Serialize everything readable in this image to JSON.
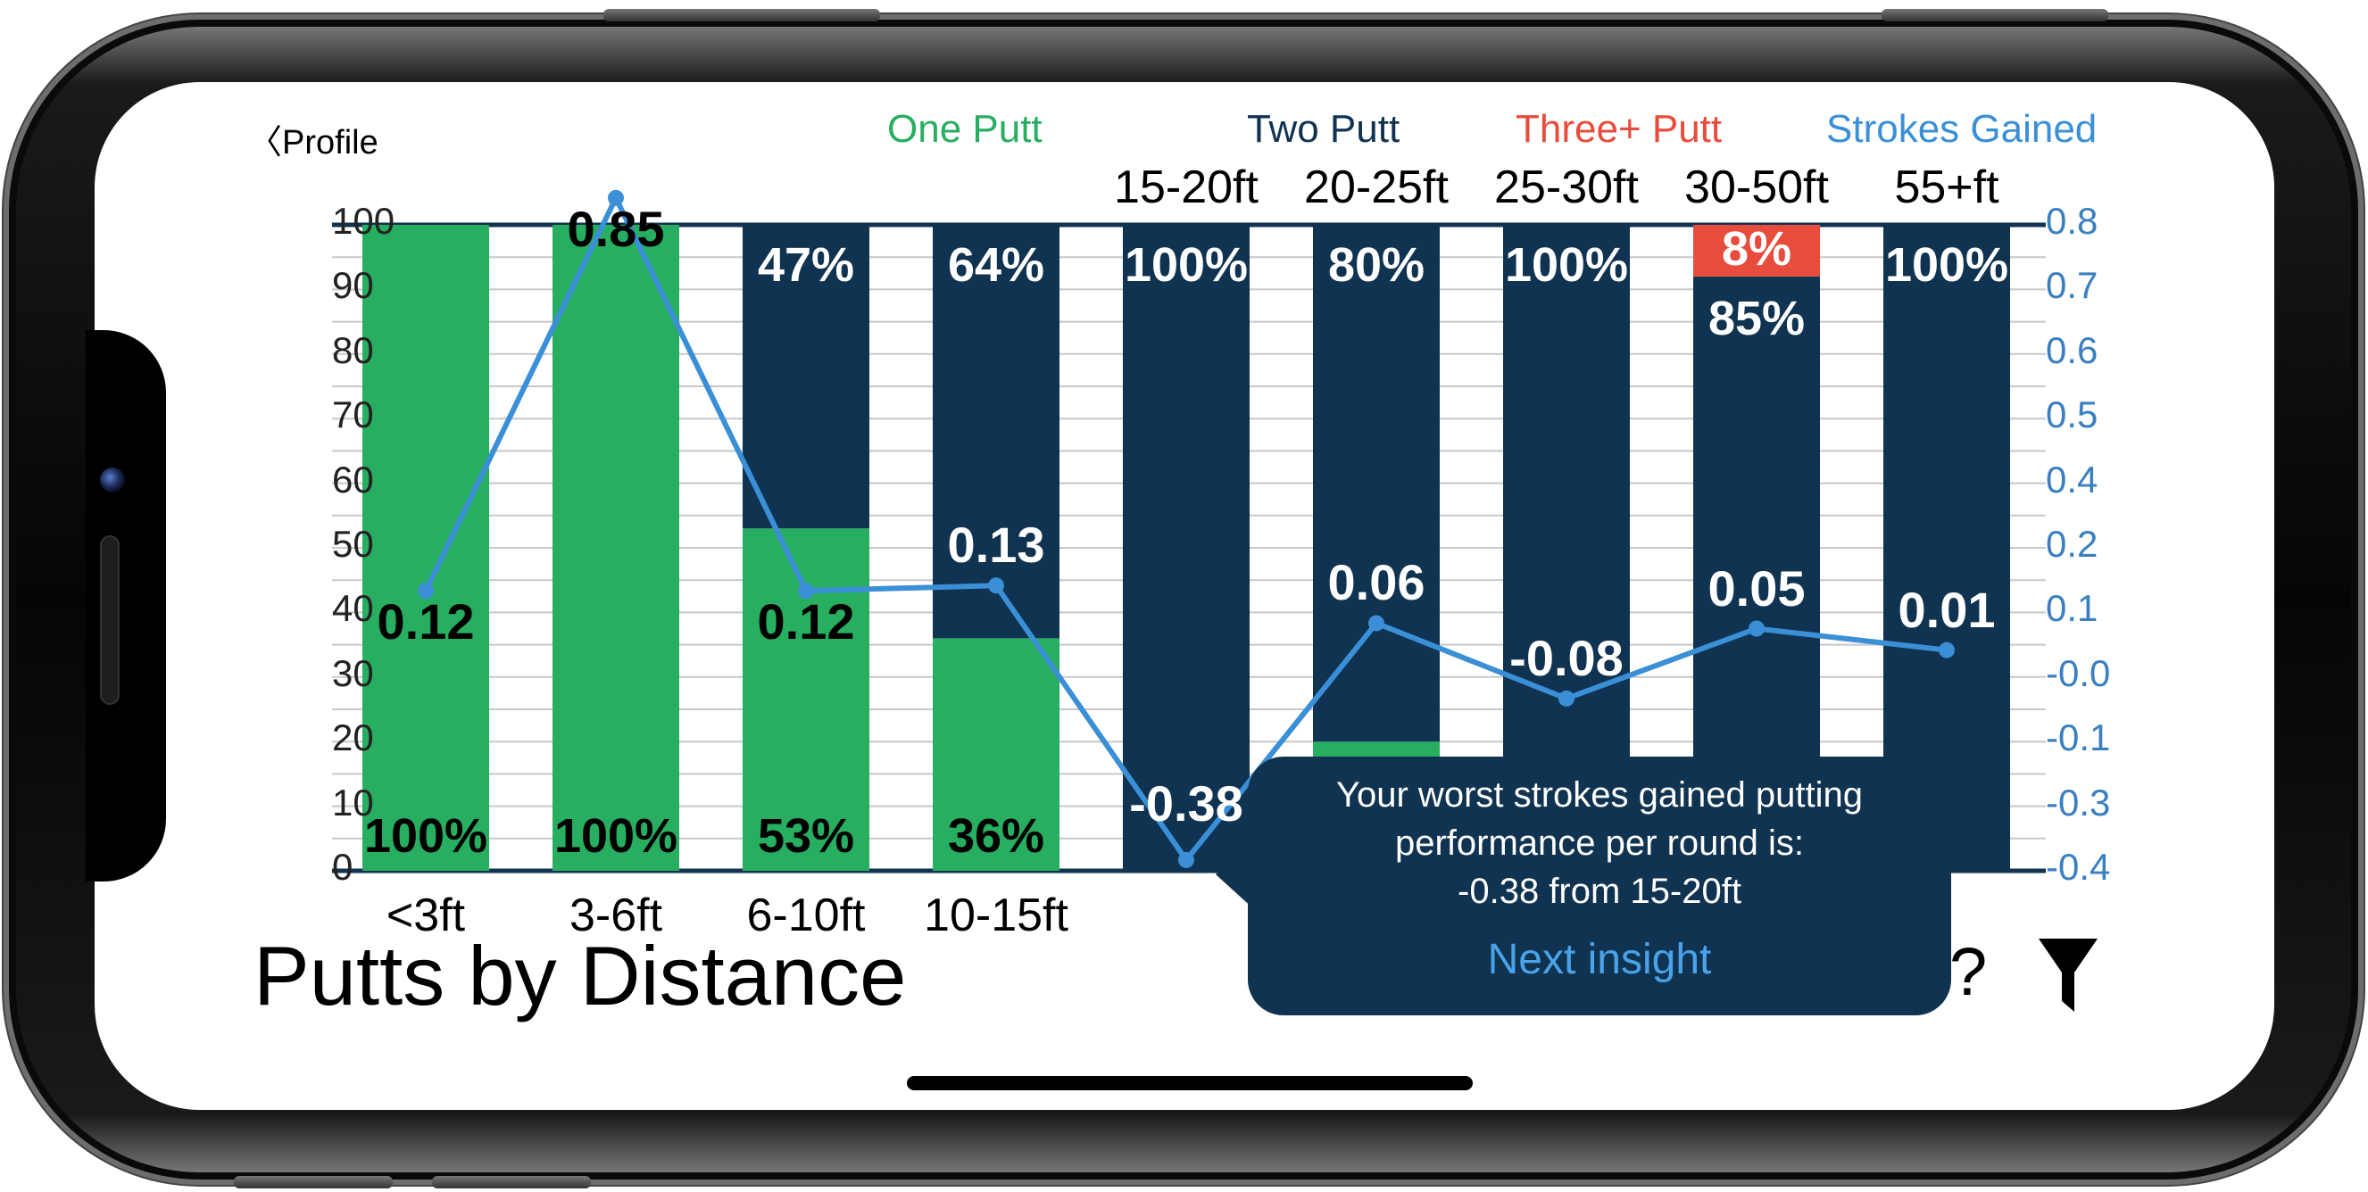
{
  "nav": {
    "back_label": "Profile"
  },
  "page_title": "Putts by Distance",
  "legend": [
    {
      "label": "One Putt",
      "color": "#27ae60"
    },
    {
      "label": "Two Putt",
      "color": "#0f3350"
    },
    {
      "label": "Three+ Putt",
      "color": "#e74c3c"
    },
    {
      "label": "Strokes Gained",
      "color": "#3a8fd6"
    }
  ],
  "tooltip": {
    "line1": "Your worst strokes gained putting",
    "line2": "performance per round is:",
    "line3": "-0.38 from 15-20ft",
    "link": "Next insight"
  },
  "icons": {
    "help": "?",
    "filter": "filter-icon"
  },
  "chart_data": {
    "type": "bar",
    "stacked": true,
    "categories": [
      "<3ft",
      "3-6ft",
      "6-10ft",
      "10-15ft",
      "15-20ft",
      "20-25ft",
      "25-30ft",
      "30-50ft",
      "55+ft"
    ],
    "y_left": {
      "ylim": [
        0,
        100
      ],
      "ticks": [
        "0",
        "10",
        "20",
        "30",
        "40",
        "50",
        "60",
        "70",
        "80",
        "90",
        "100"
      ]
    },
    "y_right": {
      "ylim": [
        -0.4,
        0.8
      ],
      "ticks": [
        "-0.4",
        "-0.3",
        "-0.1",
        "-0.0",
        "0.1",
        "0.2",
        "0.4",
        "0.5",
        "0.6",
        "0.7",
        "0.8"
      ]
    },
    "series": [
      {
        "name": "One Putt",
        "values": [
          100,
          100,
          53,
          36,
          0,
          20,
          0,
          7,
          0
        ],
        "labels": [
          "100%",
          "100%",
          "53%",
          "36%",
          "",
          "",
          "",
          "",
          ""
        ]
      },
      {
        "name": "Two Putt",
        "values": [
          0,
          0,
          47,
          64,
          100,
          80,
          100,
          85,
          100
        ],
        "labels": [
          "",
          "",
          "47%",
          "64%",
          "100%",
          "80%",
          "100%",
          "85%",
          "100%"
        ]
      },
      {
        "name": "Three+ Putt",
        "values": [
          0,
          0,
          0,
          0,
          0,
          0,
          0,
          8,
          0
        ],
        "labels": [
          "",
          "",
          "",
          "",
          "",
          "",
          "",
          "8%",
          ""
        ]
      },
      {
        "name": "Strokes Gained",
        "type": "line",
        "values": [
          0.12,
          0.85,
          0.12,
          0.13,
          -0.38,
          0.06,
          -0.08,
          0.05,
          0.01
        ],
        "labels": [
          "0.12",
          "0.85",
          "0.12",
          "0.13",
          "-0.38",
          "0.06",
          "-0.08",
          "0.05",
          "0.01"
        ]
      }
    ],
    "grid": true,
    "legend_position": "top"
  }
}
